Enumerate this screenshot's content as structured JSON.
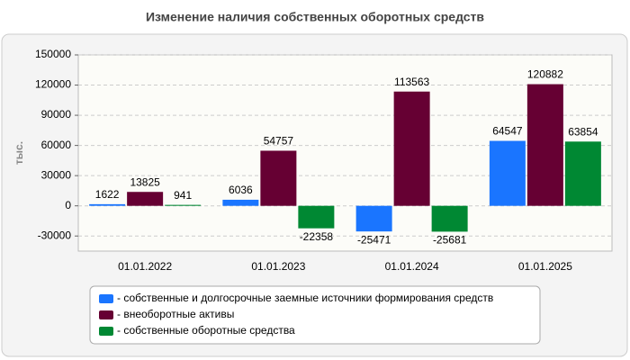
{
  "chart_data": {
    "type": "bar",
    "title": "Изменение наличия собственных оборотных средств",
    "y_label": "тыс.",
    "categories": [
      "01.01.2022",
      "01.01.2023",
      "01.01.2024",
      "01.01.2025"
    ],
    "series": [
      {
        "name": "- собственные и долгосрочные заемные источники формирования средств",
        "color": "#1a75ff",
        "values": [
          1622,
          6036,
          -25471,
          64547
        ]
      },
      {
        "name": "- внеоборотные активы",
        "color": "#660033",
        "values": [
          13825,
          54757,
          113563,
          120882
        ]
      },
      {
        "name": "- собственные оборотные средства",
        "color": "#008833",
        "values": [
          941,
          -22358,
          -25681,
          63854
        ]
      }
    ],
    "ylim": [
      -45000,
      150000
    ],
    "yticks": [
      -30000,
      0,
      30000,
      60000,
      90000,
      120000,
      150000
    ],
    "grid": true
  }
}
